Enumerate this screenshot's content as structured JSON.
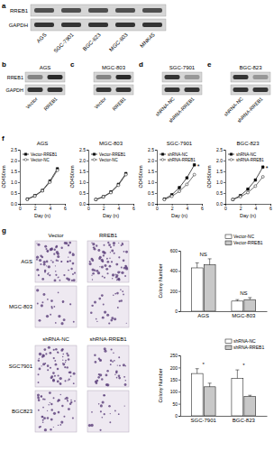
{
  "panel_labels": [
    "a",
    "b",
    "c",
    "d",
    "e",
    "f",
    "g"
  ],
  "blots": [
    {
      "rows": [
        "RREB1",
        "GAPDH"
      ],
      "lanes": [
        "AGS",
        "SGC-7901",
        "BGC-823",
        "MGC-803",
        "MNK45"
      ]
    },
    {
      "title": "AGS",
      "rows": [
        "RREB1",
        "GAPDH"
      ],
      "lanes": [
        "Vector",
        "RREB1"
      ]
    },
    {
      "title": "MGC-803",
      "lanes": [
        "Vector",
        "RREB1"
      ]
    },
    {
      "title": "SGC-7901",
      "lanes": [
        "shRNA-NC",
        "shRNA-RREB1"
      ]
    },
    {
      "title": "BGC-823",
      "lanes": [
        "shRNA-NC",
        "shRNA-RREB1"
      ]
    }
  ],
  "colony": {
    "groups": [
      {
        "columns": [
          "Vector",
          "RREB1"
        ],
        "rows": [
          "AGS",
          "MGC-803"
        ]
      },
      {
        "columns": [
          "shRNA-NC",
          "shRNA-RREB1"
        ],
        "rows": [
          "SGC7901",
          "BGC823"
        ]
      }
    ]
  },
  "chart_data": [
    {
      "type": "line",
      "title": "AGS",
      "x_label": "Day (n)",
      "y_label": "OD450nm",
      "x": [
        1,
        2,
        3,
        4,
        5
      ],
      "xlim": [
        0,
        6
      ],
      "xticks": [
        0,
        2,
        4,
        6
      ],
      "ylim": [
        0,
        2.5
      ],
      "yticks": [
        {
          "value": 0,
          "label": "0.0"
        },
        {
          "value": 0.5,
          "label": "0.5"
        },
        {
          "value": 1,
          "label": "1.0"
        },
        {
          "value": 1.5,
          "label": "1.5"
        },
        {
          "value": 2,
          "label": "2.0"
        },
        {
          "value": 2.5,
          "label": "2.5"
        }
      ],
      "legend": "upper left",
      "series": [
        {
          "name": "Vector-RREB1",
          "color": "#000000",
          "marker": "square",
          "values": [
            0.22,
            0.38,
            0.62,
            1.05,
            1.62
          ]
        },
        {
          "name": "Vector-NC",
          "color": "#333333",
          "marker": "circle",
          "values": [
            0.21,
            0.36,
            0.6,
            1.0,
            1.55
          ]
        }
      ]
    },
    {
      "type": "line",
      "title": "MGC-803",
      "x_label": "Day (n)",
      "y_label": "OD450nm",
      "x": [
        1,
        2,
        3,
        4,
        5
      ],
      "xlim": [
        0,
        6
      ],
      "xticks": [
        0,
        2,
        4,
        6
      ],
      "ylim": [
        0,
        2.5
      ],
      "yticks": [
        {
          "value": 0,
          "label": "0.0"
        },
        {
          "value": 0.5,
          "label": "0.5"
        },
        {
          "value": 1,
          "label": "1.0"
        },
        {
          "value": 1.5,
          "label": "1.5"
        },
        {
          "value": 2,
          "label": "2.0"
        },
        {
          "value": 2.5,
          "label": "2.5"
        }
      ],
      "legend": "upper left",
      "series": [
        {
          "name": "Vector-RREB1",
          "color": "#000000",
          "marker": "square",
          "values": [
            0.2,
            0.33,
            0.55,
            0.9,
            1.4
          ]
        },
        {
          "name": "Vector-NC",
          "color": "#333333",
          "marker": "circle",
          "values": [
            0.2,
            0.32,
            0.52,
            0.86,
            1.35
          ]
        }
      ]
    },
    {
      "type": "line",
      "title": "SGC-7901",
      "x_label": "Day (n)",
      "y_label": "OD450nm",
      "x": [
        1,
        2,
        3,
        4,
        5
      ],
      "xlim": [
        0,
        6
      ],
      "xticks": [
        0,
        2,
        4,
        6
      ],
      "ylim": [
        0,
        2.5
      ],
      "yticks": [
        {
          "value": 0,
          "label": "0.0"
        },
        {
          "value": 0.5,
          "label": "0.5"
        },
        {
          "value": 1,
          "label": "1.0"
        },
        {
          "value": 1.5,
          "label": "1.5"
        },
        {
          "value": 2,
          "label": "2.0"
        },
        {
          "value": 2.5,
          "label": "2.5"
        }
      ],
      "legend": "upper left",
      "annotations": [
        "*"
      ],
      "series": [
        {
          "name": "shRNA-NC",
          "color": "#000000",
          "marker": "square",
          "values": [
            0.22,
            0.42,
            0.75,
            1.2,
            1.8
          ]
        },
        {
          "name": "shRNA-RREB1",
          "color": "#333333",
          "marker": "circle",
          "values": [
            0.2,
            0.35,
            0.58,
            0.9,
            1.35
          ]
        }
      ]
    },
    {
      "type": "line",
      "title": "BGC-823",
      "x_label": "Day (n)",
      "y_label": "OD450nm",
      "x": [
        1,
        2,
        3,
        4,
        5
      ],
      "xlim": [
        0,
        6
      ],
      "xticks": [
        0,
        2,
        4,
        6
      ],
      "ylim": [
        0,
        2.5
      ],
      "yticks": [
        {
          "value": 0,
          "label": "0.0"
        },
        {
          "value": 0.5,
          "label": "0.5"
        },
        {
          "value": 1,
          "label": "1.0"
        },
        {
          "value": 1.5,
          "label": "1.5"
        },
        {
          "value": 2,
          "label": "2.0"
        },
        {
          "value": 2.5,
          "label": "2.5"
        }
      ],
      "legend": "upper left",
      "annotations": [
        "*"
      ],
      "series": [
        {
          "name": "shRNA-NC",
          "color": "#000000",
          "marker": "square",
          "values": [
            0.2,
            0.38,
            0.68,
            1.1,
            1.7
          ]
        },
        {
          "name": "shRNA-RREB1",
          "color": "#333333",
          "marker": "circle",
          "values": [
            0.2,
            0.33,
            0.52,
            0.82,
            1.25
          ]
        }
      ]
    },
    {
      "type": "bar",
      "y_label": "Colony Number",
      "categories": [
        "AGS",
        "MGC-803"
      ],
      "ylim": [
        0,
        600
      ],
      "yticks": [
        0,
        200,
        400,
        600
      ],
      "legend": "upper right",
      "annotations": [
        "NS",
        "NS"
      ],
      "series": [
        {
          "name": "Vector-NC",
          "color": "#ffffff",
          "values": [
            430,
            100
          ],
          "errors": [
            50,
            15
          ]
        },
        {
          "name": "Vector-RREB1",
          "color": "#c8c8c8",
          "values": [
            460,
            115
          ],
          "errors": [
            60,
            20
          ]
        }
      ]
    },
    {
      "type": "bar",
      "y_label": "Colony Number",
      "categories": [
        "SGC-7901",
        "BGC-823"
      ],
      "ylim": [
        0,
        250
      ],
      "yticks": [
        0,
        50,
        100,
        150,
        200,
        250
      ],
      "legend": "upper right",
      "annotations": [
        "*",
        "*"
      ],
      "series": [
        {
          "name": "shRNA-NC",
          "color": "#ffffff",
          "values": [
            175,
            155
          ],
          "errors": [
            20,
            35
          ]
        },
        {
          "name": "shRNA-RREB1",
          "color": "#c8c8c8",
          "values": [
            120,
            80
          ],
          "errors": [
            15,
            5
          ]
        }
      ]
    }
  ]
}
